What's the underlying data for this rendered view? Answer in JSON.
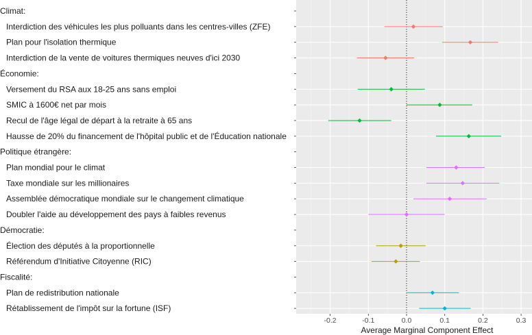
{
  "chart_data": {
    "type": "scatter",
    "subtype": "coefficient-plot-with-error-bars",
    "xlabel": "Average Marginal Component Effect",
    "xlim": [
      -0.29,
      0.33
    ],
    "xticks": [
      -0.2,
      -0.1,
      0.0,
      0.1,
      0.2,
      0.3
    ],
    "xtick_labels": [
      "-0.2",
      "-0.1",
      "0.0",
      "0.1",
      "0.2",
      "0.3"
    ],
    "reference_line": 0,
    "grid": true,
    "legend": "none",
    "groups": [
      {
        "name": "Climat:",
        "color": "#F8766D",
        "items": [
          {
            "label": "Interdiction des véhicules les plus polluants dans les centres-villes (ZFE)",
            "estimate": 0.018,
            "low": -0.058,
            "high": 0.095
          },
          {
            "label": "Plan pour l'isolation thermique",
            "estimate": 0.167,
            "low": 0.093,
            "high": 0.24
          },
          {
            "label": "Interdiction de la vente de voitures thermiques neuves d'ici 2030",
            "estimate": -0.055,
            "low": -0.13,
            "high": 0.02
          }
        ]
      },
      {
        "name": "Économie:",
        "color": "#00BA38",
        "items": [
          {
            "label": "Versement du RSA aux 18-25 ans sans emploi",
            "estimate": -0.04,
            "low": -0.128,
            "high": 0.048
          },
          {
            "label": "SMIC à 1600€ net par mois",
            "estimate": 0.087,
            "low": 0.0,
            "high": 0.172
          },
          {
            "label": "Recul de l'âge légal de départ à la retraite à 65 ans",
            "estimate": -0.123,
            "low": -0.205,
            "high": -0.04
          },
          {
            "label": "Hausse de 20% du financement de l'hôpital public et de l'Éducation nationale",
            "estimate": 0.163,
            "low": 0.077,
            "high": 0.248
          }
        ]
      },
      {
        "name": "Politique étrangère:",
        "color": "#DB72FB",
        "items": [
          {
            "label": "Plan mondial pour le climat",
            "estimate": 0.13,
            "low": 0.052,
            "high": 0.205
          },
          {
            "label": "Taxe mondiale sur les millionaires",
            "estimate": 0.147,
            "low": 0.052,
            "high": 0.243
          },
          {
            "label": "Assemblée démocratique mondiale sur le changement climatique",
            "estimate": 0.113,
            "low": 0.018,
            "high": 0.21
          },
          {
            "label": "Doubler l'aide au développement des pays à faibles revenus",
            "estimate": 0.0,
            "low": -0.1,
            "high": 0.1
          }
        ]
      },
      {
        "name": "Démocratie:",
        "color": "#B79F00",
        "items": [
          {
            "label": "Élection des députés à la proportionnelle",
            "estimate": -0.015,
            "low": -0.08,
            "high": 0.05
          },
          {
            "label": "Référendum d'Initiative Citoyenne (RIC)",
            "estimate": -0.028,
            "low": -0.092,
            "high": 0.035
          }
        ]
      },
      {
        "name": "Fiscalité:",
        "color": "#00B4D8",
        "items": [
          {
            "label": "Plan de redistribution nationale",
            "estimate": 0.068,
            "low": 0.0,
            "high": 0.137
          },
          {
            "label": "Rétablissement de l'impôt sur la fortune (ISF)",
            "estimate": 0.1,
            "low": 0.033,
            "high": 0.168
          }
        ]
      }
    ]
  }
}
